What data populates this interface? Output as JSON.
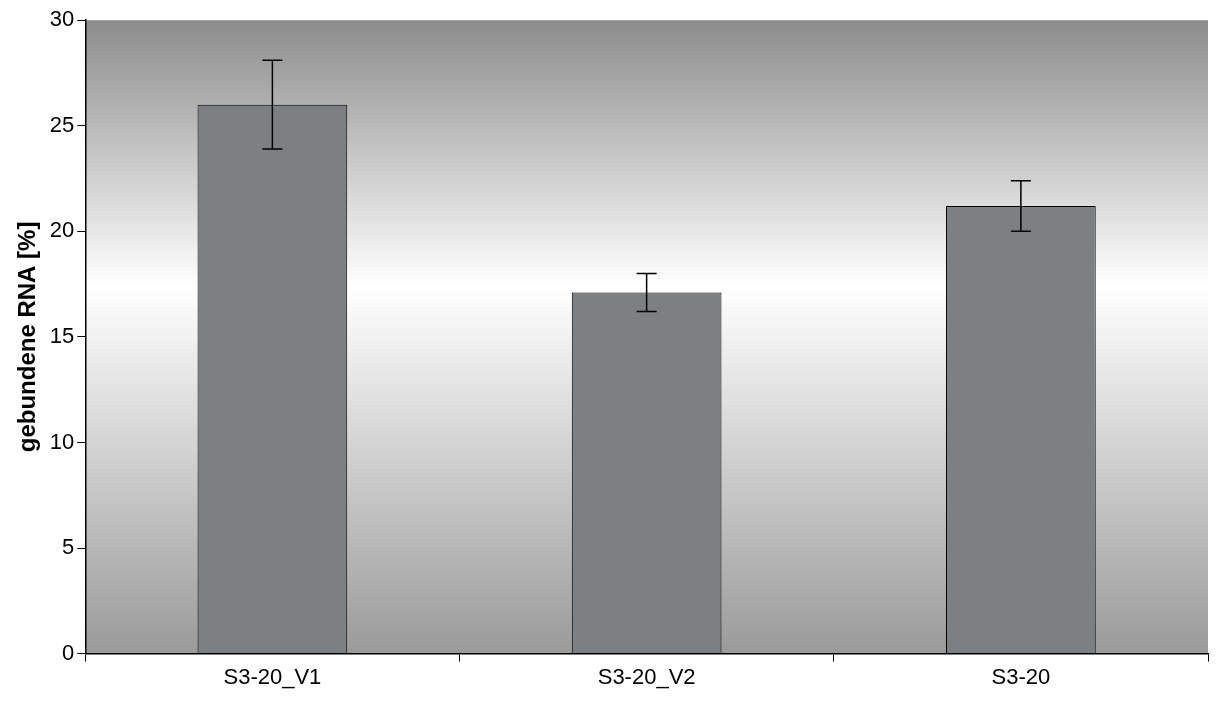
{
  "chart_data": {
    "type": "bar",
    "y_label": "gebundene RNA [%]",
    "categories": [
      "S3-20_V1",
      "S3-20_V2",
      "S3-20"
    ],
    "values": [
      26.0,
      17.1,
      21.2
    ],
    "errors": [
      2.1,
      0.9,
      1.2
    ],
    "color": "#7d8083",
    "ylim": [
      0,
      30
    ],
    "yticks": [
      0,
      5,
      10,
      15,
      20,
      25,
      30
    ],
    "grid": false
  }
}
